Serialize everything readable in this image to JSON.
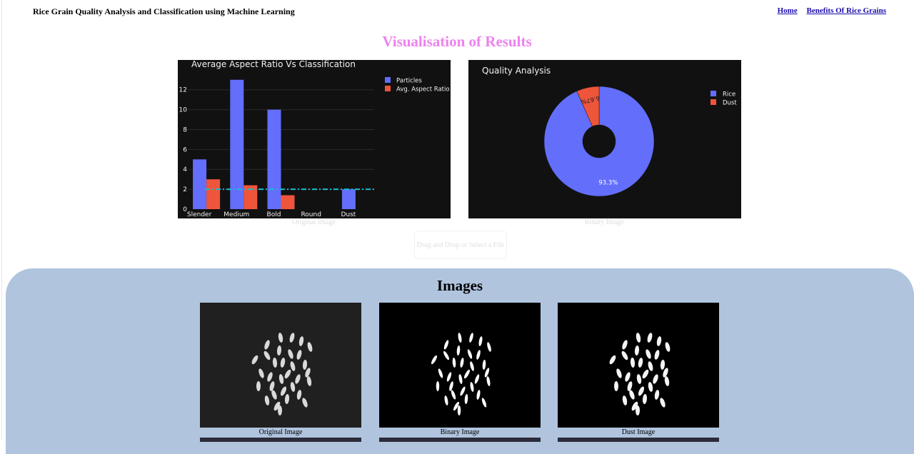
{
  "header": {
    "title": "Rice Grain Quality Analysis and Classification using Machine Learning",
    "nav": [
      {
        "label": "Home"
      },
      {
        "label": "Benefits Of Rice Grains"
      }
    ]
  },
  "visualisation": {
    "heading": "Visualisation of Results",
    "ghost_labels": [
      "Original Image",
      "Binary Image"
    ]
  },
  "upload": {
    "label": "Drag and Drop or Select a File"
  },
  "images_section": {
    "heading": "Images",
    "captions": [
      "Original Image",
      "Binary Image",
      "Dust Image"
    ]
  },
  "colors": {
    "accent_heading": "#ee82ee",
    "panel_bg": "#b0c4de",
    "series_particles": "#636efa",
    "series_ratio": "#ef553b",
    "reference_line": "#17becf"
  },
  "chart_data": [
    {
      "type": "bar",
      "title": "Average Aspect Ratio Vs Classification",
      "categories": [
        "Slender",
        "Medium",
        "Bold",
        "Round",
        "Dust"
      ],
      "series": [
        {
          "name": "Particles",
          "values": [
            5,
            13,
            10,
            0,
            2
          ],
          "color": "#636efa"
        },
        {
          "name": "Avg. Aspect Ratio",
          "values": [
            3.0,
            2.4,
            1.4,
            0,
            0
          ],
          "color": "#ef553b"
        }
      ],
      "reference_line": {
        "y": 2.0,
        "style": "dash-dot",
        "color": "#17becf"
      },
      "yticks": [
        0,
        2,
        4,
        6,
        8,
        10,
        12
      ],
      "ylim": [
        0,
        13.7
      ],
      "legend": "top-right",
      "grid": true
    },
    {
      "type": "pie",
      "title": "Quality Analysis",
      "hole": true,
      "slices": [
        {
          "label": "Rice",
          "value": 93.3,
          "text": "93.3%",
          "color": "#636efa"
        },
        {
          "label": "Dust",
          "value": 6.67,
          "text": "6.67%",
          "color": "#ef553b"
        }
      ],
      "legend": "top-right"
    }
  ]
}
